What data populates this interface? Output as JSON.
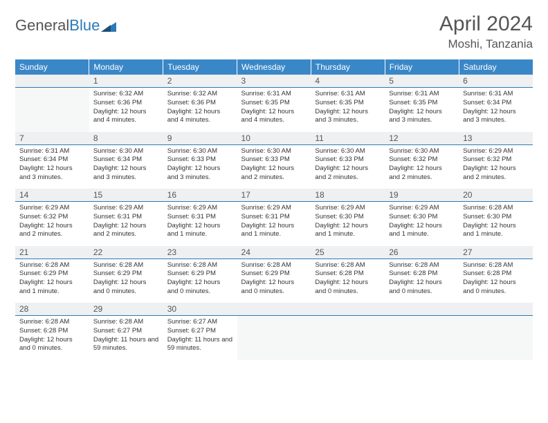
{
  "brand": {
    "part1": "General",
    "part2": "Blue"
  },
  "title": "April 2024",
  "location": "Moshi, Tanzania",
  "colors": {
    "header_bg": "#3a87c8",
    "rule": "#2a7ab8",
    "daynum_bg": "#eef0f1"
  },
  "day_headers": [
    "Sunday",
    "Monday",
    "Tuesday",
    "Wednesday",
    "Thursday",
    "Friday",
    "Saturday"
  ],
  "weeks": [
    [
      null,
      {
        "n": "1",
        "sr": "6:32 AM",
        "ss": "6:36 PM",
        "dl": "12 hours and 4 minutes."
      },
      {
        "n": "2",
        "sr": "6:32 AM",
        "ss": "6:36 PM",
        "dl": "12 hours and 4 minutes."
      },
      {
        "n": "3",
        "sr": "6:31 AM",
        "ss": "6:35 PM",
        "dl": "12 hours and 4 minutes."
      },
      {
        "n": "4",
        "sr": "6:31 AM",
        "ss": "6:35 PM",
        "dl": "12 hours and 3 minutes."
      },
      {
        "n": "5",
        "sr": "6:31 AM",
        "ss": "6:35 PM",
        "dl": "12 hours and 3 minutes."
      },
      {
        "n": "6",
        "sr": "6:31 AM",
        "ss": "6:34 PM",
        "dl": "12 hours and 3 minutes."
      }
    ],
    [
      {
        "n": "7",
        "sr": "6:31 AM",
        "ss": "6:34 PM",
        "dl": "12 hours and 3 minutes."
      },
      {
        "n": "8",
        "sr": "6:30 AM",
        "ss": "6:34 PM",
        "dl": "12 hours and 3 minutes."
      },
      {
        "n": "9",
        "sr": "6:30 AM",
        "ss": "6:33 PM",
        "dl": "12 hours and 3 minutes."
      },
      {
        "n": "10",
        "sr": "6:30 AM",
        "ss": "6:33 PM",
        "dl": "12 hours and 2 minutes."
      },
      {
        "n": "11",
        "sr": "6:30 AM",
        "ss": "6:33 PM",
        "dl": "12 hours and 2 minutes."
      },
      {
        "n": "12",
        "sr": "6:30 AM",
        "ss": "6:32 PM",
        "dl": "12 hours and 2 minutes."
      },
      {
        "n": "13",
        "sr": "6:29 AM",
        "ss": "6:32 PM",
        "dl": "12 hours and 2 minutes."
      }
    ],
    [
      {
        "n": "14",
        "sr": "6:29 AM",
        "ss": "6:32 PM",
        "dl": "12 hours and 2 minutes."
      },
      {
        "n": "15",
        "sr": "6:29 AM",
        "ss": "6:31 PM",
        "dl": "12 hours and 2 minutes."
      },
      {
        "n": "16",
        "sr": "6:29 AM",
        "ss": "6:31 PM",
        "dl": "12 hours and 1 minute."
      },
      {
        "n": "17",
        "sr": "6:29 AM",
        "ss": "6:31 PM",
        "dl": "12 hours and 1 minute."
      },
      {
        "n": "18",
        "sr": "6:29 AM",
        "ss": "6:30 PM",
        "dl": "12 hours and 1 minute."
      },
      {
        "n": "19",
        "sr": "6:29 AM",
        "ss": "6:30 PM",
        "dl": "12 hours and 1 minute."
      },
      {
        "n": "20",
        "sr": "6:28 AM",
        "ss": "6:30 PM",
        "dl": "12 hours and 1 minute."
      }
    ],
    [
      {
        "n": "21",
        "sr": "6:28 AM",
        "ss": "6:29 PM",
        "dl": "12 hours and 1 minute."
      },
      {
        "n": "22",
        "sr": "6:28 AM",
        "ss": "6:29 PM",
        "dl": "12 hours and 0 minutes."
      },
      {
        "n": "23",
        "sr": "6:28 AM",
        "ss": "6:29 PM",
        "dl": "12 hours and 0 minutes."
      },
      {
        "n": "24",
        "sr": "6:28 AM",
        "ss": "6:29 PM",
        "dl": "12 hours and 0 minutes."
      },
      {
        "n": "25",
        "sr": "6:28 AM",
        "ss": "6:28 PM",
        "dl": "12 hours and 0 minutes."
      },
      {
        "n": "26",
        "sr": "6:28 AM",
        "ss": "6:28 PM",
        "dl": "12 hours and 0 minutes."
      },
      {
        "n": "27",
        "sr": "6:28 AM",
        "ss": "6:28 PM",
        "dl": "12 hours and 0 minutes."
      }
    ],
    [
      {
        "n": "28",
        "sr": "6:28 AM",
        "ss": "6:28 PM",
        "dl": "12 hours and 0 minutes."
      },
      {
        "n": "29",
        "sr": "6:28 AM",
        "ss": "6:27 PM",
        "dl": "11 hours and 59 minutes."
      },
      {
        "n": "30",
        "sr": "6:27 AM",
        "ss": "6:27 PM",
        "dl": "11 hours and 59 minutes."
      },
      null,
      null,
      null,
      null
    ]
  ],
  "labels": {
    "sunrise": "Sunrise:",
    "sunset": "Sunset:",
    "daylight": "Daylight:"
  }
}
